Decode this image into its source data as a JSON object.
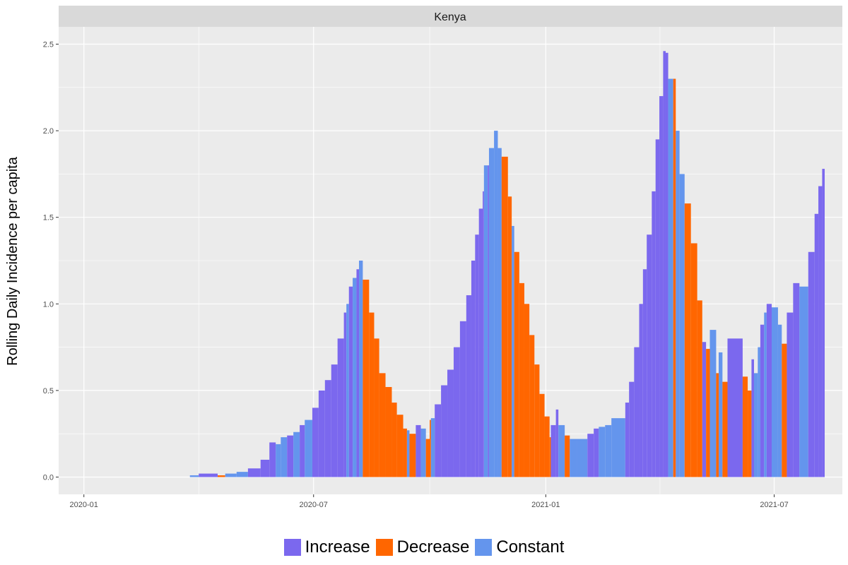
{
  "chart_data": {
    "type": "bar",
    "facet_title": "Kenya",
    "ylabel": "Rolling Daily Incidence per capita",
    "xlabel": "",
    "x_ticks": [
      "2020-01",
      "2020-07",
      "2021-01",
      "2021-07"
    ],
    "y_ticks": [
      "0.0",
      "0.5",
      "1.0",
      "1.5",
      "2.0",
      "2.5"
    ],
    "ylim": [
      -0.1,
      2.6
    ],
    "xlim": [
      "2019-12-12",
      "2021-08-24"
    ],
    "grid": true,
    "legend_position": "bottom",
    "categories": [
      "Increase",
      "Decrease",
      "Constant"
    ],
    "colors": {
      "Increase": "#7B68EE",
      "Decrease": "#FF6600",
      "Constant": "#6495ED"
    },
    "series": [
      {
        "name": "Increase",
        "values": [
          [
            "2020-04-01",
            0.02
          ],
          [
            "2020-05-10",
            0.05
          ],
          [
            "2020-05-20",
            0.1
          ],
          [
            "2020-05-27",
            0.2
          ],
          [
            "2020-06-10",
            0.24
          ],
          [
            "2020-06-20",
            0.3
          ],
          [
            "2020-06-30",
            0.4
          ],
          [
            "2020-07-05",
            0.5
          ],
          [
            "2020-07-10",
            0.56
          ],
          [
            "2020-07-15",
            0.65
          ],
          [
            "2020-07-20",
            0.8
          ],
          [
            "2020-07-25",
            0.95
          ],
          [
            "2020-07-29",
            1.1
          ],
          [
            "2020-08-04",
            1.2
          ],
          [
            "2020-09-20",
            0.3
          ],
          [
            "2020-10-05",
            0.42
          ],
          [
            "2020-10-10",
            0.53
          ],
          [
            "2020-10-15",
            0.62
          ],
          [
            "2020-10-20",
            0.75
          ],
          [
            "2020-10-25",
            0.9
          ],
          [
            "2020-10-30",
            1.05
          ],
          [
            "2020-11-03",
            1.25
          ],
          [
            "2020-11-06",
            1.4
          ],
          [
            "2020-11-09",
            1.55
          ],
          [
            "2020-11-12",
            1.65
          ],
          [
            "2020-11-16",
            1.8
          ],
          [
            "2021-01-05",
            0.3
          ],
          [
            "2021-01-09",
            0.39
          ],
          [
            "2021-02-03",
            0.25
          ],
          [
            "2021-02-08",
            0.28
          ],
          [
            "2021-03-05",
            0.43
          ],
          [
            "2021-03-08",
            0.55
          ],
          [
            "2021-03-12",
            0.75
          ],
          [
            "2021-03-16",
            1.0
          ],
          [
            "2021-03-19",
            1.2
          ],
          [
            "2021-03-22",
            1.4
          ],
          [
            "2021-03-26",
            1.65
          ],
          [
            "2021-03-29",
            1.95
          ],
          [
            "2021-04-01",
            2.2
          ],
          [
            "2021-04-04",
            2.46
          ],
          [
            "2021-04-06",
            2.45
          ],
          [
            "2021-05-05",
            0.78
          ],
          [
            "2021-05-25",
            0.8
          ],
          [
            "2021-06-13",
            0.68
          ],
          [
            "2021-06-20",
            0.88
          ],
          [
            "2021-06-25",
            1.0
          ],
          [
            "2021-07-11",
            0.95
          ],
          [
            "2021-07-16",
            1.12
          ],
          [
            "2021-07-28",
            1.3
          ],
          [
            "2021-08-02",
            1.52
          ],
          [
            "2021-08-05",
            1.68
          ],
          [
            "2021-08-08",
            1.78
          ]
        ]
      },
      {
        "name": "Decrease",
        "values": [
          [
            "2020-04-16",
            0.01
          ],
          [
            "2020-08-09",
            1.14
          ],
          [
            "2020-08-14",
            0.95
          ],
          [
            "2020-08-18",
            0.8
          ],
          [
            "2020-08-22",
            0.6
          ],
          [
            "2020-08-27",
            0.52
          ],
          [
            "2020-09-01",
            0.43
          ],
          [
            "2020-09-05",
            0.36
          ],
          [
            "2020-09-10",
            0.28
          ],
          [
            "2020-09-15",
            0.25
          ],
          [
            "2020-09-28",
            0.22
          ],
          [
            "2020-10-01",
            0.33
          ],
          [
            "2020-11-27",
            1.85
          ],
          [
            "2020-12-02",
            1.62
          ],
          [
            "2020-12-07",
            1.3
          ],
          [
            "2020-12-11",
            1.12
          ],
          [
            "2020-12-15",
            1.0
          ],
          [
            "2020-12-19",
            0.82
          ],
          [
            "2020-12-23",
            0.65
          ],
          [
            "2020-12-27",
            0.48
          ],
          [
            "2020-12-31",
            0.35
          ],
          [
            "2021-01-04",
            0.23
          ],
          [
            "2021-01-16",
            0.24
          ],
          [
            "2021-04-12",
            2.3
          ],
          [
            "2021-04-21",
            1.58
          ],
          [
            "2021-04-26",
            1.35
          ],
          [
            "2021-05-01",
            1.02
          ],
          [
            "2021-05-08",
            0.74
          ],
          [
            "2021-05-16",
            0.6
          ],
          [
            "2021-05-21",
            0.55
          ],
          [
            "2021-06-06",
            0.58
          ],
          [
            "2021-06-10",
            0.5
          ],
          [
            "2021-07-07",
            0.77
          ]
        ]
      },
      {
        "name": "Constant",
        "values": [
          [
            "2020-03-25",
            0.01
          ],
          [
            "2020-04-22",
            0.02
          ],
          [
            "2020-05-01",
            0.03
          ],
          [
            "2020-06-01",
            0.19
          ],
          [
            "2020-06-05",
            0.23
          ],
          [
            "2020-06-15",
            0.26
          ],
          [
            "2020-06-24",
            0.33
          ],
          [
            "2020-07-27",
            1.0
          ],
          [
            "2020-08-01",
            1.15
          ],
          [
            "2020-08-06",
            1.25
          ],
          [
            "2020-09-13",
            0.27
          ],
          [
            "2020-09-24",
            0.28
          ],
          [
            "2020-10-02",
            0.34
          ],
          [
            "2020-11-13",
            1.8
          ],
          [
            "2020-11-17",
            1.9
          ],
          [
            "2020-11-21",
            2.0
          ],
          [
            "2020-11-24",
            1.9
          ],
          [
            "2020-12-05",
            1.45
          ],
          [
            "2021-01-11",
            0.3
          ],
          [
            "2021-01-20",
            0.22
          ],
          [
            "2021-01-26",
            0.22
          ],
          [
            "2021-02-12",
            0.29
          ],
          [
            "2021-02-17",
            0.3
          ],
          [
            "2021-02-22",
            0.34
          ],
          [
            "2021-04-08",
            2.3
          ],
          [
            "2021-04-14",
            2.0
          ],
          [
            "2021-04-17",
            1.75
          ],
          [
            "2021-05-11",
            0.85
          ],
          [
            "2021-05-18",
            0.72
          ],
          [
            "2021-06-15",
            0.6
          ],
          [
            "2021-06-18",
            0.75
          ],
          [
            "2021-06-23",
            0.95
          ],
          [
            "2021-06-29",
            0.98
          ],
          [
            "2021-07-04",
            0.88
          ],
          [
            "2021-07-21",
            1.1
          ]
        ]
      }
    ]
  }
}
